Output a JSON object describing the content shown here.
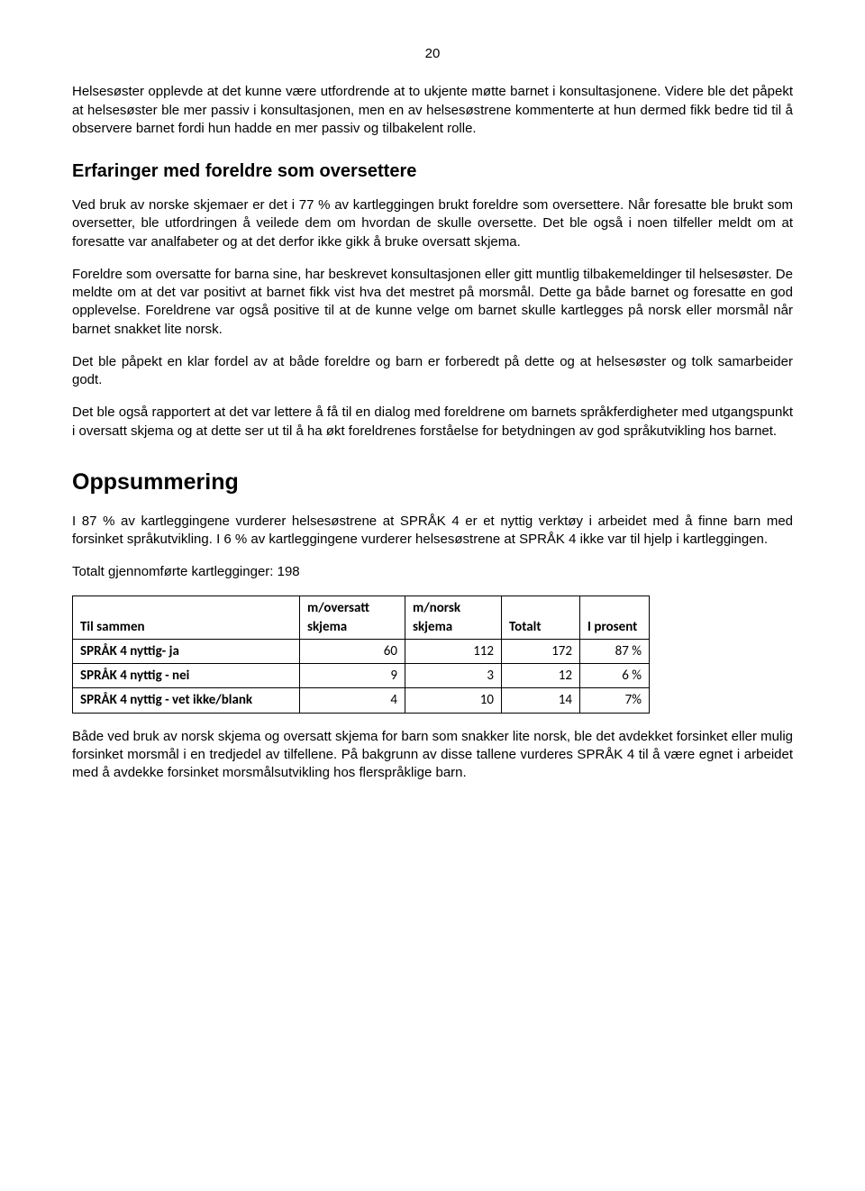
{
  "page_number": "20",
  "paragraphs": {
    "p1": "Helsesøster opplevde at det kunne være utfordrende at to ukjente møtte barnet i konsultasjonene. Videre ble det påpekt at helsesøster ble mer passiv i konsultasjonen, men en av helsesøstrene kommenterte at hun dermed fikk bedre tid til å observere barnet fordi hun hadde en mer passiv og tilbakelent rolle.",
    "p2": "Ved bruk av norske skjemaer er det i 77 % av kartleggingen brukt foreldre som oversettere. Når foresatte ble brukt som oversetter, ble utfordringen å veilede dem om hvordan de skulle oversette. Det ble også i noen tilfeller meldt om at foresatte var analfabeter og at det derfor ikke gikk å bruke oversatt skjema.",
    "p3": "Foreldre som oversatte for barna sine, har beskrevet konsultasjonen eller gitt muntlig tilbakemeldinger til helsesøster. De meldte om at det var positivt at barnet fikk vist hva det mestret på morsmål. Dette ga både barnet og foresatte en god opplevelse. Foreldrene var også positive til at de kunne velge om barnet skulle kartlegges på norsk eller morsmål når barnet snakket lite norsk.",
    "p4": "Det ble påpekt en klar fordel av at både foreldre og barn er forberedt på dette og at helsesøster og tolk samarbeider godt.",
    "p5": "Det ble også rapportert at det var lettere å få til en dialog med foreldrene om barnets språkferdigheter med utgangspunkt i oversatt skjema og at dette ser ut til å ha økt foreldrenes forståelse for betydningen av god språkutvikling hos barnet.",
    "p6": "I 87 % av kartleggingene vurderer helsesøstrene at SPRÅK 4 er et nyttig verktøy i arbeidet med å finne barn med forsinket språkutvikling. I 6 % av kartleggingene vurderer helsesøstrene at SPRÅK 4 ikke var til hjelp i kartleggingen.",
    "p7": "Totalt gjennomførte kartlegginger: 198",
    "p8": "Både ved bruk av norsk skjema og oversatt skjema for barn som snakker lite norsk, ble det avdekket forsinket eller mulig forsinket morsmål i en tredjedel av tilfellene. På bakgrunn av disse tallene vurderes SPRÅK 4 til å være egnet i arbeidet med å avdekke forsinket morsmålsutvikling hos flerspråklige barn."
  },
  "headings": {
    "h1": "Erfaringer med foreldre som oversettere",
    "h2": "Oppsummering"
  },
  "table": {
    "headers": {
      "c0": "Til sammen",
      "c1": "m/oversatt skjema",
      "c2": "m/norsk skjema",
      "c3": "Totalt",
      "c4": "I prosent"
    },
    "rows": [
      {
        "label": "SPRÅK 4 nyttig- ja",
        "a": "60",
        "b": "112",
        "c": "172",
        "d": "87 %"
      },
      {
        "label": "SPRÅK 4 nyttig - nei",
        "a": "9",
        "b": "3",
        "c": "12",
        "d": "6 %"
      },
      {
        "label": "SPRÅK 4 nyttig - vet ikke/blank",
        "a": "4",
        "b": "10",
        "c": "14",
        "d": "7%"
      }
    ]
  }
}
